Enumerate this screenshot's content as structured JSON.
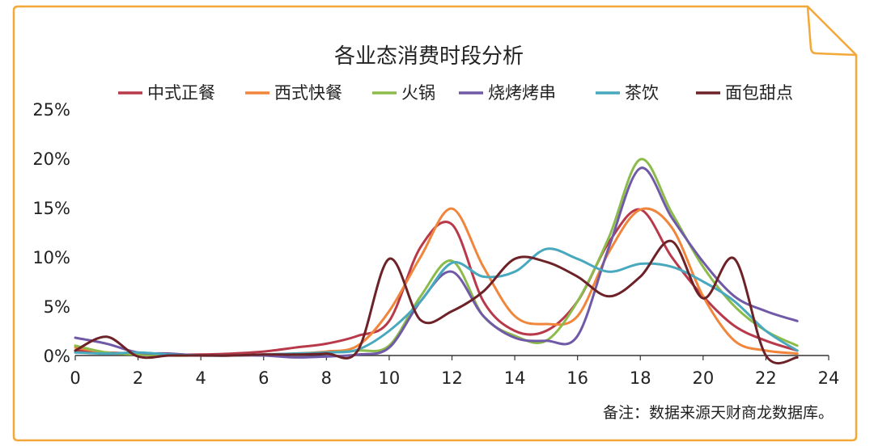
{
  "colors": {
    "frame_border": "#f3a838",
    "axis": "#333333"
  },
  "note": "备注：数据来源天财商龙数据库。",
  "chart_data": {
    "type": "line",
    "title": "各业态消费时段分析",
    "xlabel": "",
    "ylabel": "",
    "xlim": [
      0,
      24
    ],
    "ylim": [
      0,
      25
    ],
    "x_ticks": [
      "0",
      "2",
      "4",
      "6",
      "8",
      "10",
      "12",
      "14",
      "16",
      "18",
      "20",
      "22",
      "24"
    ],
    "y_ticks": [
      "0%",
      "5%",
      "10%",
      "15%",
      "20%",
      "25%"
    ],
    "grid": false,
    "legend": "top",
    "x": [
      0,
      1,
      2,
      3,
      4,
      5,
      6,
      7,
      8,
      9,
      10,
      11,
      12,
      13,
      14,
      15,
      16,
      17,
      18,
      19,
      20,
      21,
      22,
      23
    ],
    "series": [
      {
        "name": "中式正餐",
        "color": "#b8394a",
        "values": [
          0.5,
          0.3,
          0.2,
          0.1,
          0.1,
          0.2,
          0.4,
          0.8,
          1.2,
          2.0,
          3.5,
          11.0,
          13.3,
          5.5,
          2.5,
          2.5,
          5.5,
          11.5,
          14.8,
          10.0,
          6.0,
          3.0,
          1.5,
          0.5
        ]
      },
      {
        "name": "西式快餐",
        "color": "#f0853c",
        "values": [
          0.8,
          0.3,
          0.1,
          0.0,
          0.0,
          0.0,
          0.1,
          0.2,
          0.4,
          1.0,
          4.5,
          10.0,
          14.9,
          9.0,
          4.0,
          3.2,
          4.0,
          10.5,
          14.8,
          13.0,
          6.0,
          1.5,
          0.5,
          0.2
        ]
      },
      {
        "name": "火锅",
        "color": "#8bbb4a",
        "values": [
          1.0,
          0.3,
          0.1,
          0.0,
          0.0,
          0.0,
          0.1,
          0.2,
          0.3,
          0.5,
          1.0,
          6.0,
          9.6,
          4.0,
          2.0,
          1.5,
          5.5,
          12.0,
          19.9,
          14.5,
          9.0,
          5.0,
          2.5,
          1.0
        ]
      },
      {
        "name": "烧烤烤串",
        "color": "#7059a6",
        "values": [
          1.8,
          1.2,
          0.3,
          0.2,
          0.0,
          0.0,
          0.0,
          -0.2,
          -0.1,
          0.1,
          0.8,
          5.5,
          8.5,
          4.0,
          1.8,
          1.5,
          2.0,
          11.0,
          19.0,
          14.0,
          9.5,
          6.0,
          4.5,
          3.5
        ]
      },
      {
        "name": "茶饮",
        "color": "#48a8be",
        "values": [
          0.3,
          0.2,
          0.3,
          0.1,
          0.0,
          0.0,
          0.1,
          0.2,
          0.3,
          0.6,
          2.5,
          5.5,
          9.4,
          8.0,
          8.5,
          10.8,
          9.8,
          8.5,
          9.3,
          9.0,
          7.5,
          5.5,
          2.5,
          0.5
        ]
      },
      {
        "name": "面包甜点",
        "color": "#6d2228",
        "values": [
          0.5,
          1.9,
          -0.1,
          0.0,
          0.0,
          0.0,
          0.1,
          0.1,
          0.2,
          0.5,
          9.8,
          3.6,
          4.5,
          6.5,
          9.8,
          9.5,
          8.0,
          6.0,
          8.0,
          11.6,
          5.8,
          9.8,
          0.0,
          -0.2
        ]
      }
    ]
  }
}
